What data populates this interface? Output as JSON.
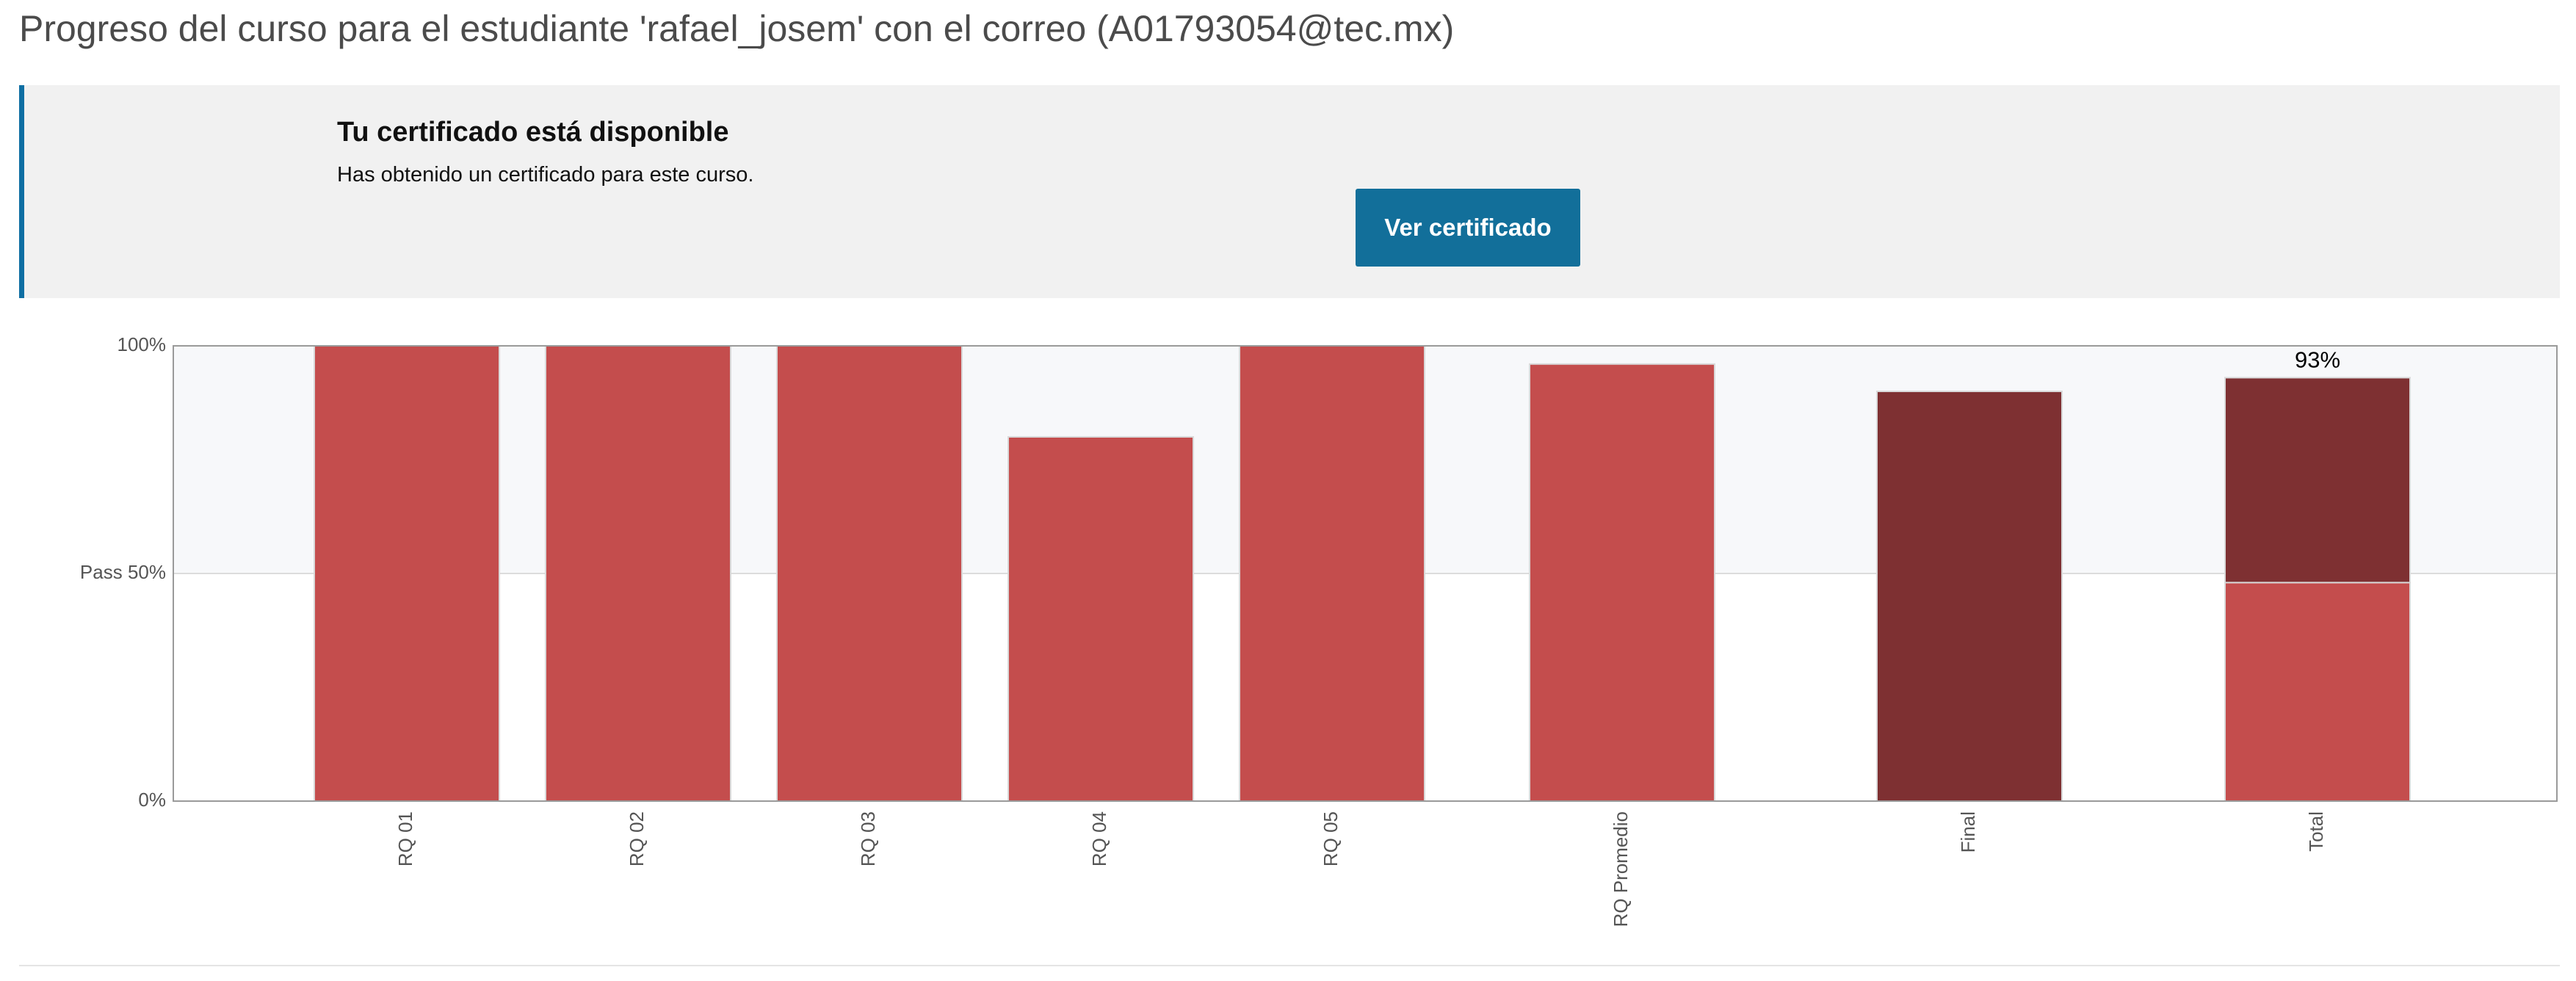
{
  "header": {
    "title": "Progreso del curso para el estudiante 'rafael_josem' con el correo (A01793054@tec.mx)"
  },
  "certificate": {
    "title": "Tu certificado está disponible",
    "message": "Has obtenido un certificado para este curso.",
    "button_label": "Ver certificado"
  },
  "colors": {
    "accent": "#0f6fa3",
    "button": "#126f9a",
    "bar_assignment": "#c44d4d",
    "bar_final": "#7e3032",
    "pass_band": "#f7f8fa"
  },
  "chart_data": {
    "type": "bar",
    "title": "",
    "xlabel": "",
    "ylabel": "",
    "ylim": [
      0,
      100
    ],
    "yticks": [
      {
        "value": 0,
        "label": "0%"
      },
      {
        "value": 50,
        "label": "Pass 50%"
      },
      {
        "value": 100,
        "label": "100%"
      }
    ],
    "pass_threshold": 50,
    "categories": [
      "RQ 01",
      "RQ 02",
      "RQ 03",
      "RQ 04",
      "RQ 05",
      "RQ Promedio",
      "Final",
      "Total"
    ],
    "values": [
      100,
      100,
      100,
      80,
      100,
      96,
      90,
      93
    ],
    "total_breakdown": {
      "RQ": 48,
      "Final": 45
    },
    "data_labels": [
      {
        "category": "Total",
        "text": "93%"
      }
    ]
  }
}
